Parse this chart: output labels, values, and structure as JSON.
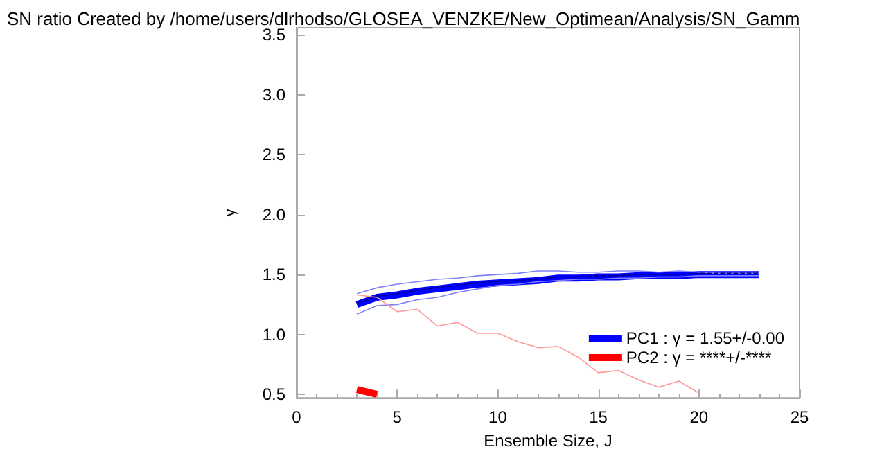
{
  "chart_data": {
    "type": "line",
    "title": "SN ratio Created by /home/users/dlrhodso/GLOSEA_VENZKE/New_Optimean/Analysis/SN_Gamm",
    "xlabel": "Ensemble Size, J",
    "ylabel": "γ",
    "xlim": [
      0,
      25
    ],
    "xticks": [
      0,
      5,
      10,
      15,
      20,
      25
    ],
    "ylim": [
      0.47,
      3.56
    ],
    "yticks": [
      0.5,
      {
        "value": 1,
        "label": "1.0"
      },
      1.5,
      {
        "value": 2,
        "label": "2.0"
      },
      2.5,
      {
        "value": 3,
        "label": "3.0"
      },
      3.5
    ],
    "grid": false,
    "legend": "bottom right",
    "marker": "none",
    "series": [
      {
        "color": "#8080ff",
        "line_style": "solid",
        "x": [
          3,
          4,
          5,
          6,
          7,
          8,
          9,
          10,
          11,
          12,
          13,
          14,
          15,
          16,
          17,
          18,
          19,
          20,
          21,
          22,
          23
        ],
        "values": [
          1.34,
          1.39,
          1.42,
          1.44,
          1.46,
          1.47,
          1.49,
          1.5,
          1.51,
          1.53,
          1.53,
          1.52,
          1.52,
          1.53,
          1.53,
          1.52,
          1.53,
          1.52,
          1.51,
          1.51,
          1.51
        ]
      },
      {
        "color": "#8080ff",
        "line_style": "solid",
        "x": [
          3,
          4,
          5,
          6,
          7,
          8,
          9,
          10,
          11,
          12,
          13,
          14,
          15,
          16,
          17,
          18,
          19,
          20,
          21,
          22,
          23
        ],
        "values": [
          1.17,
          1.24,
          1.25,
          1.29,
          1.31,
          1.35,
          1.38,
          1.41,
          1.42,
          1.44,
          1.45,
          1.46,
          1.46,
          1.47,
          1.47,
          1.48,
          1.48,
          1.49,
          1.49,
          1.49,
          1.49
        ]
      },
      {
        "color": "#ff9999",
        "line_style": "solid",
        "x": [
          3,
          4,
          5,
          6,
          7,
          8,
          9,
          10,
          11,
          12,
          13,
          14,
          15,
          16,
          17,
          18,
          19,
          20
        ],
        "values": [
          1.33,
          1.31,
          1.19,
          1.21,
          1.07,
          1.1,
          1.01,
          1.01,
          0.94,
          0.89,
          0.9,
          0.81,
          0.68,
          0.7,
          0.62,
          0.56,
          0.61,
          0.51
        ]
      },
      {
        "name": "PC1 : γ = 1.55+/-0.00",
        "color": "#0000ff",
        "line_style": "solid",
        "x": [
          3,
          4,
          5,
          6,
          7,
          8,
          9,
          10,
          11,
          12,
          13,
          14,
          15,
          16,
          17,
          18,
          19,
          20,
          21,
          22,
          23
        ],
        "values": [
          1.25,
          1.31,
          1.33,
          1.36,
          1.38,
          1.4,
          1.42,
          1.43,
          1.44,
          1.45,
          1.47,
          1.47,
          1.48,
          1.48,
          1.49,
          1.49,
          1.49,
          1.5,
          1.5,
          1.5,
          1.5
        ]
      },
      {
        "color": "#000080",
        "line_style": "dashed",
        "x": [
          3,
          4,
          5,
          6,
          7,
          8,
          9,
          10,
          11,
          12,
          13,
          14,
          15,
          16,
          17,
          18,
          19,
          20,
          21,
          22,
          23
        ],
        "values": [
          1.26,
          1.32,
          1.34,
          1.37,
          1.39,
          1.41,
          1.43,
          1.44,
          1.45,
          1.46,
          1.48,
          1.48,
          1.49,
          1.49,
          1.5,
          1.5,
          1.5,
          1.51,
          1.51,
          1.51,
          1.51
        ]
      },
      {
        "name": "PC2 : γ = ****+/-****",
        "color": "#ff0000",
        "line_style": "solid",
        "x": [
          3,
          4
        ],
        "values": [
          0.54,
          0.5
        ]
      }
    ]
  }
}
